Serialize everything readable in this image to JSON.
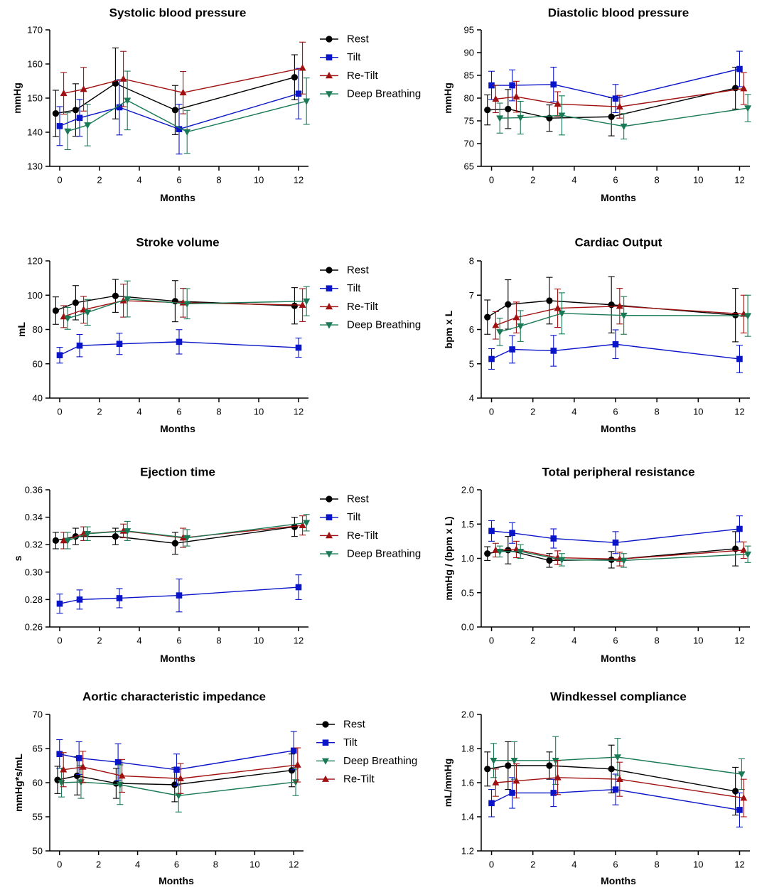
{
  "colors": {
    "rest": "#000000",
    "tilt": "#0a14c8",
    "retilt": "#a01010",
    "deep": "#1a7a55"
  },
  "chart_data": [
    {
      "id": "sbp",
      "type": "line",
      "title": "Systolic blood pressure",
      "xlabel": "Months",
      "ylabel": "mmHg",
      "xlim": [
        -0.5,
        12.5
      ],
      "xticks": [
        0,
        2,
        4,
        6,
        8,
        10,
        12
      ],
      "ylim": [
        130,
        170
      ],
      "yticks": [
        130,
        140,
        150,
        160,
        170
      ],
      "ytick_labels": [
        "130",
        "140",
        "150",
        "160",
        "170"
      ],
      "legend": [
        "rest",
        "tilt",
        "retilt",
        "deep"
      ],
      "series": [
        {
          "key": "rest",
          "name": "Rest",
          "marker": "circle",
          "x": [
            -0.2,
            0.8,
            2.8,
            5.8,
            11.8
          ],
          "y": [
            145.5,
            146.5,
            154.3,
            146.5,
            156.1
          ],
          "err": [
            6.8,
            7.7,
            10.4,
            7.2,
            6.6
          ]
        },
        {
          "key": "tilt",
          "name": "Tilt",
          "marker": "square",
          "x": [
            0,
            1,
            3,
            6,
            12
          ],
          "y": [
            141.8,
            144.2,
            147.3,
            140.9,
            151.3
          ],
          "err": [
            5.7,
            5.4,
            8.1,
            7.3,
            7.4
          ]
        },
        {
          "key": "retilt",
          "name": "Re-Tilt",
          "marker": "triangle-up",
          "x": [
            0.2,
            1.2,
            3.2,
            6.2,
            12.2
          ],
          "y": [
            151.4,
            152.6,
            155.6,
            151.6,
            158.8
          ],
          "err": [
            6.1,
            6.4,
            8.1,
            6.2,
            7.6
          ]
        },
        {
          "key": "deep",
          "name": "Deep Breathing",
          "marker": "triangle-down",
          "x": [
            0.4,
            1.4,
            3.4,
            6.4,
            12.4
          ],
          "y": [
            140.3,
            142.1,
            149.3,
            140.1,
            149.1
          ],
          "err": [
            5.4,
            6.1,
            8.6,
            6.3,
            6.8
          ]
        }
      ]
    },
    {
      "id": "dbp",
      "type": "line",
      "title": "Diastolic blood pressure",
      "xlabel": "Months",
      "ylabel": "mmHg",
      "xlim": [
        -0.5,
        12.5
      ],
      "xticks": [
        0,
        2,
        4,
        6,
        8,
        10,
        12
      ],
      "ylim": [
        65,
        95
      ],
      "yticks": [
        65,
        70,
        75,
        80,
        85,
        90,
        95
      ],
      "ytick_labels": [
        "65",
        "70",
        "75",
        "80",
        "85",
        "90",
        "95"
      ],
      "legend": [],
      "series": [
        {
          "key": "rest",
          "name": "Rest",
          "marker": "circle",
          "x": [
            -0.2,
            0.8,
            2.8,
            5.8,
            11.8
          ],
          "y": [
            77.4,
            77.6,
            75.6,
            75.9,
            82.2
          ],
          "err": [
            3.3,
            4.3,
            2.9,
            4.2,
            4.6
          ]
        },
        {
          "key": "tilt",
          "name": "Tilt",
          "marker": "square",
          "x": [
            0,
            1,
            3,
            6,
            12
          ],
          "y": [
            82.8,
            82.8,
            83.0,
            79.9,
            86.4
          ],
          "err": [
            3.1,
            3.4,
            3.8,
            3.1,
            3.9
          ]
        },
        {
          "key": "retilt",
          "name": "Re-Tilt",
          "marker": "triangle-up",
          "x": [
            0.2,
            1.2,
            3.2,
            6.2,
            12.2
          ],
          "y": [
            79.8,
            80.3,
            78.7,
            78.1,
            82.1
          ],
          "err": [
            3.0,
            3.4,
            2.7,
            2.5,
            3.5
          ]
        },
        {
          "key": "deep",
          "name": "Deep Breathing",
          "marker": "triangle-down",
          "x": [
            0.4,
            1.4,
            3.4,
            6.4,
            12.4
          ],
          "y": [
            75.6,
            75.7,
            76.2,
            73.8,
            77.8
          ],
          "err": [
            3.3,
            3.6,
            4.3,
            2.8,
            3.0
          ]
        }
      ]
    },
    {
      "id": "sv",
      "type": "line",
      "title": "Stroke volume",
      "xlabel": "Months",
      "ylabel": "mL",
      "xlim": [
        -0.5,
        12.5
      ],
      "xticks": [
        0,
        2,
        4,
        6,
        8,
        10,
        12
      ],
      "ylim": [
        40,
        120
      ],
      "yticks": [
        40,
        60,
        80,
        100,
        120
      ],
      "ytick_labels": [
        "40",
        "60",
        "80",
        "100",
        "120"
      ],
      "legend": [
        "rest",
        "tilt",
        "retilt",
        "deep"
      ],
      "series": [
        {
          "key": "rest",
          "name": "Rest",
          "marker": "circle",
          "x": [
            -0.2,
            0.8,
            2.8,
            5.8,
            11.8
          ],
          "y": [
            91,
            95.6,
            99.6,
            96.5,
            93.8
          ],
          "err": [
            8,
            10,
            9.6,
            12,
            10.6
          ]
        },
        {
          "key": "tilt",
          "name": "Tilt",
          "marker": "square",
          "x": [
            0,
            1,
            3,
            6,
            12
          ],
          "y": [
            65,
            70.6,
            71.6,
            72.8,
            69.4
          ],
          "err": [
            4.6,
            6.5,
            6.2,
            7.1,
            5.6
          ]
        },
        {
          "key": "retilt",
          "name": "Re-Tilt",
          "marker": "triangle-up",
          "x": [
            0.2,
            1.2,
            3.2,
            6.2,
            12.2
          ],
          "y": [
            87.5,
            91.5,
            96.8,
            95.6,
            94.2
          ],
          "err": [
            6.4,
            7.8,
            9.6,
            8.4,
            9.6
          ]
        },
        {
          "key": "deep",
          "name": "Deep Breathing",
          "marker": "triangle-down",
          "x": [
            0.4,
            1.4,
            3.4,
            6.4,
            12.4
          ],
          "y": [
            86.5,
            90,
            97.8,
            95,
            96.5
          ],
          "err": [
            6.4,
            7.5,
            10.5,
            8.8,
            8.5
          ]
        }
      ]
    },
    {
      "id": "co",
      "type": "line",
      "title": "Cardiac Output",
      "xlabel": "Months",
      "ylabel": "bpm x L",
      "xlim": [
        -0.5,
        12.5
      ],
      "xticks": [
        0,
        2,
        4,
        6,
        8,
        10,
        12
      ],
      "ylim": [
        4,
        8
      ],
      "yticks": [
        4,
        5,
        6,
        7,
        8
      ],
      "ytick_labels": [
        "4",
        "5",
        "6",
        "7",
        "8"
      ],
      "legend": [],
      "series": [
        {
          "key": "rest",
          "name": "Rest",
          "marker": "circle",
          "x": [
            -0.2,
            0.8,
            2.8,
            5.8,
            11.8
          ],
          "y": [
            6.36,
            6.73,
            6.84,
            6.72,
            6.42
          ],
          "err": [
            0.5,
            0.72,
            0.68,
            0.82,
            0.78
          ]
        },
        {
          "key": "tilt",
          "name": "Tilt",
          "marker": "square",
          "x": [
            0,
            1,
            3,
            6,
            12
          ],
          "y": [
            5.14,
            5.42,
            5.38,
            5.57,
            5.14
          ],
          "err": [
            0.3,
            0.4,
            0.45,
            0.42,
            0.4
          ]
        },
        {
          "key": "retilt",
          "name": "Re-Tilt",
          "marker": "triangle-up",
          "x": [
            0.2,
            1.2,
            3.2,
            6.2,
            12.2
          ],
          "y": [
            6.12,
            6.35,
            6.62,
            6.68,
            6.45
          ],
          "err": [
            0.4,
            0.45,
            0.56,
            0.52,
            0.55
          ]
        },
        {
          "key": "deep",
          "name": "Deep Breathing",
          "marker": "triangle-down",
          "x": [
            0.4,
            1.4,
            3.4,
            6.4,
            12.4
          ],
          "y": [
            5.93,
            6.1,
            6.47,
            6.41,
            6.4
          ],
          "err": [
            0.4,
            0.45,
            0.6,
            0.55,
            0.6
          ]
        }
      ]
    },
    {
      "id": "et",
      "type": "line",
      "title": "Ejection time",
      "xlabel": "Months",
      "ylabel": "s",
      "xlim": [
        -0.5,
        12.5
      ],
      "xticks": [
        0,
        2,
        4,
        6,
        8,
        10,
        12
      ],
      "ylim": [
        0.26,
        0.36
      ],
      "yticks": [
        0.26,
        0.28,
        0.3,
        0.32,
        0.34,
        0.36
      ],
      "ytick_labels": [
        "0.26",
        "0.28",
        "0.30",
        "0.32",
        "0.34",
        "0.36"
      ],
      "legend": [
        "rest",
        "tilt",
        "retilt",
        "deep"
      ],
      "series": [
        {
          "key": "rest",
          "name": "Rest",
          "marker": "circle",
          "x": [
            -0.2,
            0.8,
            2.8,
            5.8,
            11.8
          ],
          "y": [
            0.323,
            0.326,
            0.326,
            0.321,
            0.333
          ],
          "err": [
            0.006,
            0.006,
            0.006,
            0.008,
            0.007
          ]
        },
        {
          "key": "tilt",
          "name": "Tilt",
          "marker": "square",
          "x": [
            0,
            1,
            3,
            6,
            12
          ],
          "y": [
            0.277,
            0.28,
            0.281,
            0.283,
            0.289
          ],
          "err": [
            0.007,
            0.007,
            0.007,
            0.012,
            0.009
          ]
        },
        {
          "key": "retilt",
          "name": "Re-Tilt",
          "marker": "triangle-up",
          "x": [
            0.2,
            1.2,
            3.2,
            6.2,
            12.2
          ],
          "y": [
            0.323,
            0.328,
            0.33,
            0.325,
            0.334
          ],
          "err": [
            0.006,
            0.005,
            0.005,
            0.007,
            0.007
          ]
        },
        {
          "key": "deep",
          "name": "Deep Breathing",
          "marker": "triangle-down",
          "x": [
            0.4,
            1.4,
            3.4,
            6.4,
            12.4
          ],
          "y": [
            0.323,
            0.328,
            0.33,
            0.325,
            0.336
          ],
          "err": [
            0.006,
            0.005,
            0.007,
            0.006,
            0.006
          ]
        }
      ]
    },
    {
      "id": "tpr",
      "type": "line",
      "title": "Total peripheral resistance",
      "xlabel": "Months",
      "ylabel": "mmHg / (bpm x L)",
      "xlim": [
        -0.5,
        12.5
      ],
      "xticks": [
        0,
        2,
        4,
        6,
        8,
        10,
        12
      ],
      "ylim": [
        0,
        2
      ],
      "yticks": [
        0,
        0.5,
        1,
        1.5,
        2
      ],
      "ytick_labels": [
        "0.0",
        "0.5",
        "1.0",
        "1.5",
        "2.0"
      ],
      "legend": [],
      "series": [
        {
          "key": "rest",
          "name": "Rest",
          "marker": "circle",
          "x": [
            -0.2,
            0.8,
            2.8,
            5.8,
            11.8
          ],
          "y": [
            1.07,
            1.12,
            0.97,
            0.98,
            1.14
          ],
          "err": [
            0.1,
            0.2,
            0.1,
            0.12,
            0.25
          ]
        },
        {
          "key": "tilt",
          "name": "Tilt",
          "marker": "square",
          "x": [
            0,
            1,
            3,
            6,
            12
          ],
          "y": [
            1.4,
            1.37,
            1.29,
            1.23,
            1.43
          ],
          "err": [
            0.15,
            0.15,
            0.14,
            0.16,
            0.19
          ]
        },
        {
          "key": "retilt",
          "name": "Re-Tilt",
          "marker": "triangle-up",
          "x": [
            0.2,
            1.2,
            3.2,
            6.2,
            12.2
          ],
          "y": [
            1.12,
            1.13,
            1.01,
            0.99,
            1.12
          ],
          "err": [
            0.1,
            0.12,
            0.1,
            0.1,
            0.12
          ]
        },
        {
          "key": "deep",
          "name": "Deep Breathing",
          "marker": "triangle-down",
          "x": [
            0.4,
            1.4,
            3.4,
            6.4,
            12.4
          ],
          "y": [
            1.1,
            1.1,
            0.98,
            0.97,
            1.06
          ],
          "err": [
            0.08,
            0.1,
            0.09,
            0.1,
            0.12
          ]
        }
      ]
    },
    {
      "id": "zao",
      "type": "line",
      "title": "Aortic characteristic impedance",
      "xlabel": "Months",
      "ylabel": "mmHg*s/mL",
      "xlim": [
        -0.5,
        12.5
      ],
      "xticks": [
        0,
        2,
        4,
        6,
        8,
        10,
        12
      ],
      "ylim": [
        50,
        70
      ],
      "yticks": [
        50,
        55,
        60,
        65,
        70
      ],
      "ytick_labels": [
        "50",
        "55",
        "60",
        "65",
        "70"
      ],
      "legend": [
        "rest",
        "tilt",
        "deep",
        "retilt"
      ],
      "series": [
        {
          "key": "rest",
          "name": "Rest",
          "marker": "circle",
          "x": [
            -0.1,
            0.9,
            2.9,
            5.9,
            11.9
          ],
          "y": [
            60.4,
            61.0,
            59.9,
            59.7,
            61.8
          ],
          "err": [
            2.0,
            2.8,
            2.2,
            2.5,
            2.4
          ]
        },
        {
          "key": "tilt",
          "name": "Tilt",
          "marker": "square",
          "x": [
            0,
            1,
            3,
            6,
            12
          ],
          "y": [
            64.2,
            63.6,
            63.0,
            61.9,
            64.7
          ],
          "err": [
            2.1,
            2.4,
            2.7,
            2.3,
            2.8
          ]
        },
        {
          "key": "deep",
          "name": "Deep Breathing",
          "marker": "triangle-down",
          "x": [
            0.1,
            1.1,
            3.1,
            6.1,
            12.1
          ],
          "y": [
            60.0,
            60.1,
            59.7,
            58.1,
            60.1
          ],
          "err": [
            2.1,
            2.4,
            2.9,
            2.4,
            2.0
          ]
        },
        {
          "key": "retilt",
          "name": "Re-Tilt",
          "marker": "triangle-up",
          "x": [
            0.2,
            1.2,
            3.2,
            6.2,
            12.2
          ],
          "y": [
            61.9,
            62.3,
            61.0,
            60.6,
            62.6
          ],
          "err": [
            2.5,
            2.3,
            2.4,
            2.2,
            2.5
          ]
        }
      ]
    },
    {
      "id": "wk",
      "type": "line",
      "title": "Windkessel compliance",
      "xlabel": "Months",
      "ylabel": "mL/mmHg",
      "xlim": [
        -0.5,
        12.5
      ],
      "xticks": [
        0,
        2,
        4,
        6,
        8,
        10,
        12
      ],
      "ylim": [
        1.2,
        2.0
      ],
      "yticks": [
        1.2,
        1.4,
        1.6,
        1.8,
        2.0
      ],
      "ytick_labels": [
        "1.2",
        "1.4",
        "1.6",
        "1.8",
        "2.0"
      ],
      "legend": [],
      "series": [
        {
          "key": "rest",
          "name": "Rest",
          "marker": "circle",
          "x": [
            -0.2,
            0.8,
            2.8,
            5.8,
            11.8
          ],
          "y": [
            1.68,
            1.7,
            1.7,
            1.68,
            1.55
          ],
          "err": [
            0.1,
            0.14,
            0.08,
            0.14,
            0.14
          ]
        },
        {
          "key": "tilt",
          "name": "Tilt",
          "marker": "square",
          "x": [
            0,
            1,
            3,
            6,
            12
          ],
          "y": [
            1.48,
            1.54,
            1.54,
            1.56,
            1.44
          ],
          "err": [
            0.08,
            0.09,
            0.08,
            0.09,
            0.1
          ]
        },
        {
          "key": "deep",
          "name": "Deep Breathing",
          "marker": "triangle-down",
          "x": [
            0.1,
            1.1,
            3.1,
            6.1,
            12.1
          ],
          "y": [
            1.73,
            1.73,
            1.73,
            1.75,
            1.65
          ],
          "err": [
            0.1,
            0.11,
            0.14,
            0.11,
            0.09
          ]
        },
        {
          "key": "retilt",
          "name": "Re-Tilt",
          "marker": "triangle-up",
          "x": [
            0.2,
            1.2,
            3.2,
            6.2,
            12.2
          ],
          "y": [
            1.6,
            1.61,
            1.63,
            1.62,
            1.51
          ],
          "err": [
            0.08,
            0.1,
            0.1,
            0.1,
            0.11
          ]
        }
      ]
    }
  ]
}
